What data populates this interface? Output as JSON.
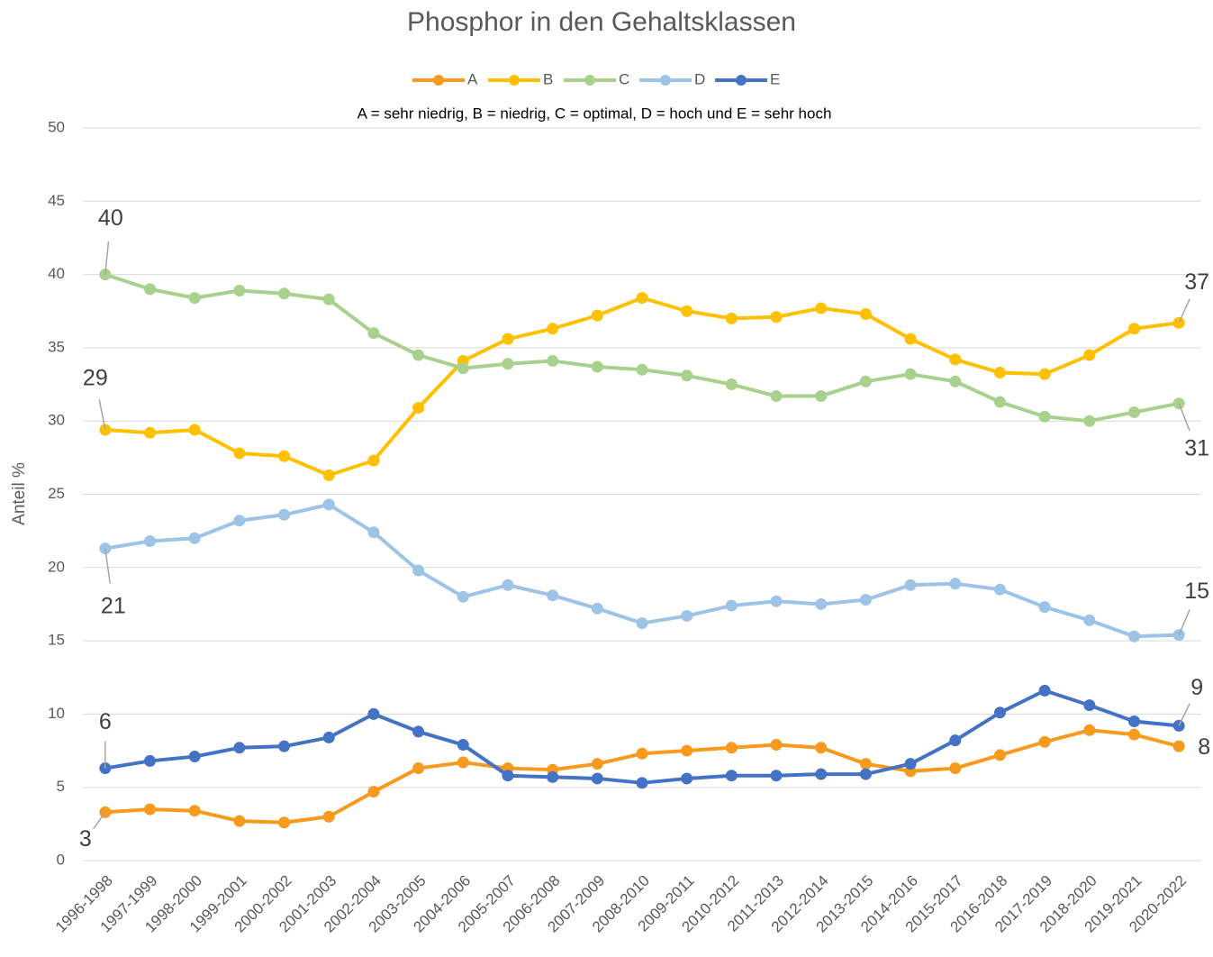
{
  "chart_data": {
    "type": "line",
    "title": "Phosphor in den Gehaltsklassen",
    "subtitle": "A = sehr niedrig, B = niedrig, C = optimal, D = hoch und E = sehr hoch",
    "y_label": "Anteil %",
    "categories": [
      "1996-1998",
      "1997-1999",
      "1998-2000",
      "1999-2001",
      "2000-2002",
      "2001-2003",
      "2002-2004",
      "2003-2005",
      "2004-2006",
      "2005-2007",
      "2006-2008",
      "2007-2009",
      "2008-2010",
      "2009-2011",
      "2010-2012",
      "2011-2013",
      "2012-2014",
      "2013-2015",
      "2014-2016",
      "2015-2017",
      "2016-2018",
      "2017-2019",
      "2018-2020",
      "2019-2021",
      "2020-2022"
    ],
    "series": [
      {
        "name": "A",
        "color": "#f79a1e",
        "values": [
          3.3,
          3.5,
          3.4,
          2.7,
          2.6,
          3.0,
          4.7,
          6.3,
          6.7,
          6.3,
          6.2,
          6.6,
          7.3,
          7.5,
          7.7,
          7.9,
          7.7,
          6.6,
          6.1,
          6.3,
          7.2,
          8.1,
          8.9,
          8.6,
          7.8
        ],
        "value_labels": [
          "3",
          null,
          null,
          null,
          null,
          null,
          null,
          null,
          null,
          null,
          null,
          null,
          null,
          null,
          null,
          null,
          null,
          null,
          null,
          null,
          null,
          null,
          null,
          null,
          "8"
        ]
      },
      {
        "name": "B",
        "color": "#ffc000",
        "values": [
          29.4,
          29.2,
          29.4,
          27.8,
          27.6,
          26.3,
          27.3,
          30.9,
          34.1,
          35.6,
          36.3,
          37.2,
          38.4,
          37.5,
          37.0,
          37.1,
          37.7,
          37.3,
          35.6,
          34.2,
          33.3,
          33.2,
          34.5,
          36.3,
          36.7
        ],
        "value_labels": [
          "29",
          null,
          null,
          null,
          null,
          null,
          null,
          null,
          null,
          null,
          null,
          null,
          null,
          null,
          null,
          null,
          null,
          null,
          null,
          null,
          null,
          null,
          null,
          null,
          "37"
        ]
      },
      {
        "name": "C",
        "color": "#a9d18e",
        "values": [
          40.0,
          39.0,
          38.4,
          38.9,
          38.7,
          38.3,
          36.0,
          34.5,
          33.6,
          33.9,
          34.1,
          33.7,
          33.5,
          33.1,
          32.5,
          31.7,
          31.7,
          32.7,
          33.2,
          32.7,
          31.3,
          30.3,
          30.0,
          30.6,
          31.2
        ],
        "value_labels": [
          "40",
          null,
          null,
          null,
          null,
          null,
          null,
          null,
          null,
          null,
          null,
          null,
          null,
          null,
          null,
          null,
          null,
          null,
          null,
          null,
          null,
          null,
          null,
          null,
          "31"
        ]
      },
      {
        "name": "D",
        "color": "#9dc3e6",
        "values": [
          21.3,
          21.8,
          22.0,
          23.2,
          23.6,
          24.3,
          22.4,
          19.8,
          18.0,
          18.8,
          18.1,
          17.2,
          16.2,
          16.7,
          17.4,
          17.7,
          17.5,
          17.8,
          18.8,
          18.9,
          18.5,
          17.3,
          16.4,
          15.3,
          15.4
        ],
        "value_labels": [
          "21",
          null,
          null,
          null,
          null,
          null,
          null,
          null,
          null,
          null,
          null,
          null,
          null,
          null,
          null,
          null,
          null,
          null,
          null,
          null,
          null,
          null,
          null,
          null,
          "15"
        ]
      },
      {
        "name": "E",
        "color": "#4472c4",
        "values": [
          6.3,
          6.8,
          7.1,
          7.7,
          7.8,
          8.4,
          10.0,
          8.8,
          7.9,
          5.8,
          5.7,
          5.6,
          5.3,
          5.6,
          5.8,
          5.8,
          5.9,
          5.9,
          6.6,
          8.2,
          10.1,
          11.6,
          10.6,
          9.5,
          9.2
        ],
        "value_labels": [
          "6",
          null,
          null,
          null,
          null,
          null,
          null,
          null,
          null,
          null,
          null,
          null,
          null,
          null,
          null,
          null,
          null,
          null,
          null,
          null,
          null,
          null,
          null,
          null,
          "9"
        ]
      }
    ],
    "ylim": [
      0,
      50
    ],
    "yticks": [
      0,
      5,
      10,
      15,
      20,
      25,
      30,
      35,
      40,
      45,
      50
    ],
    "grid": true,
    "legend": "top"
  }
}
